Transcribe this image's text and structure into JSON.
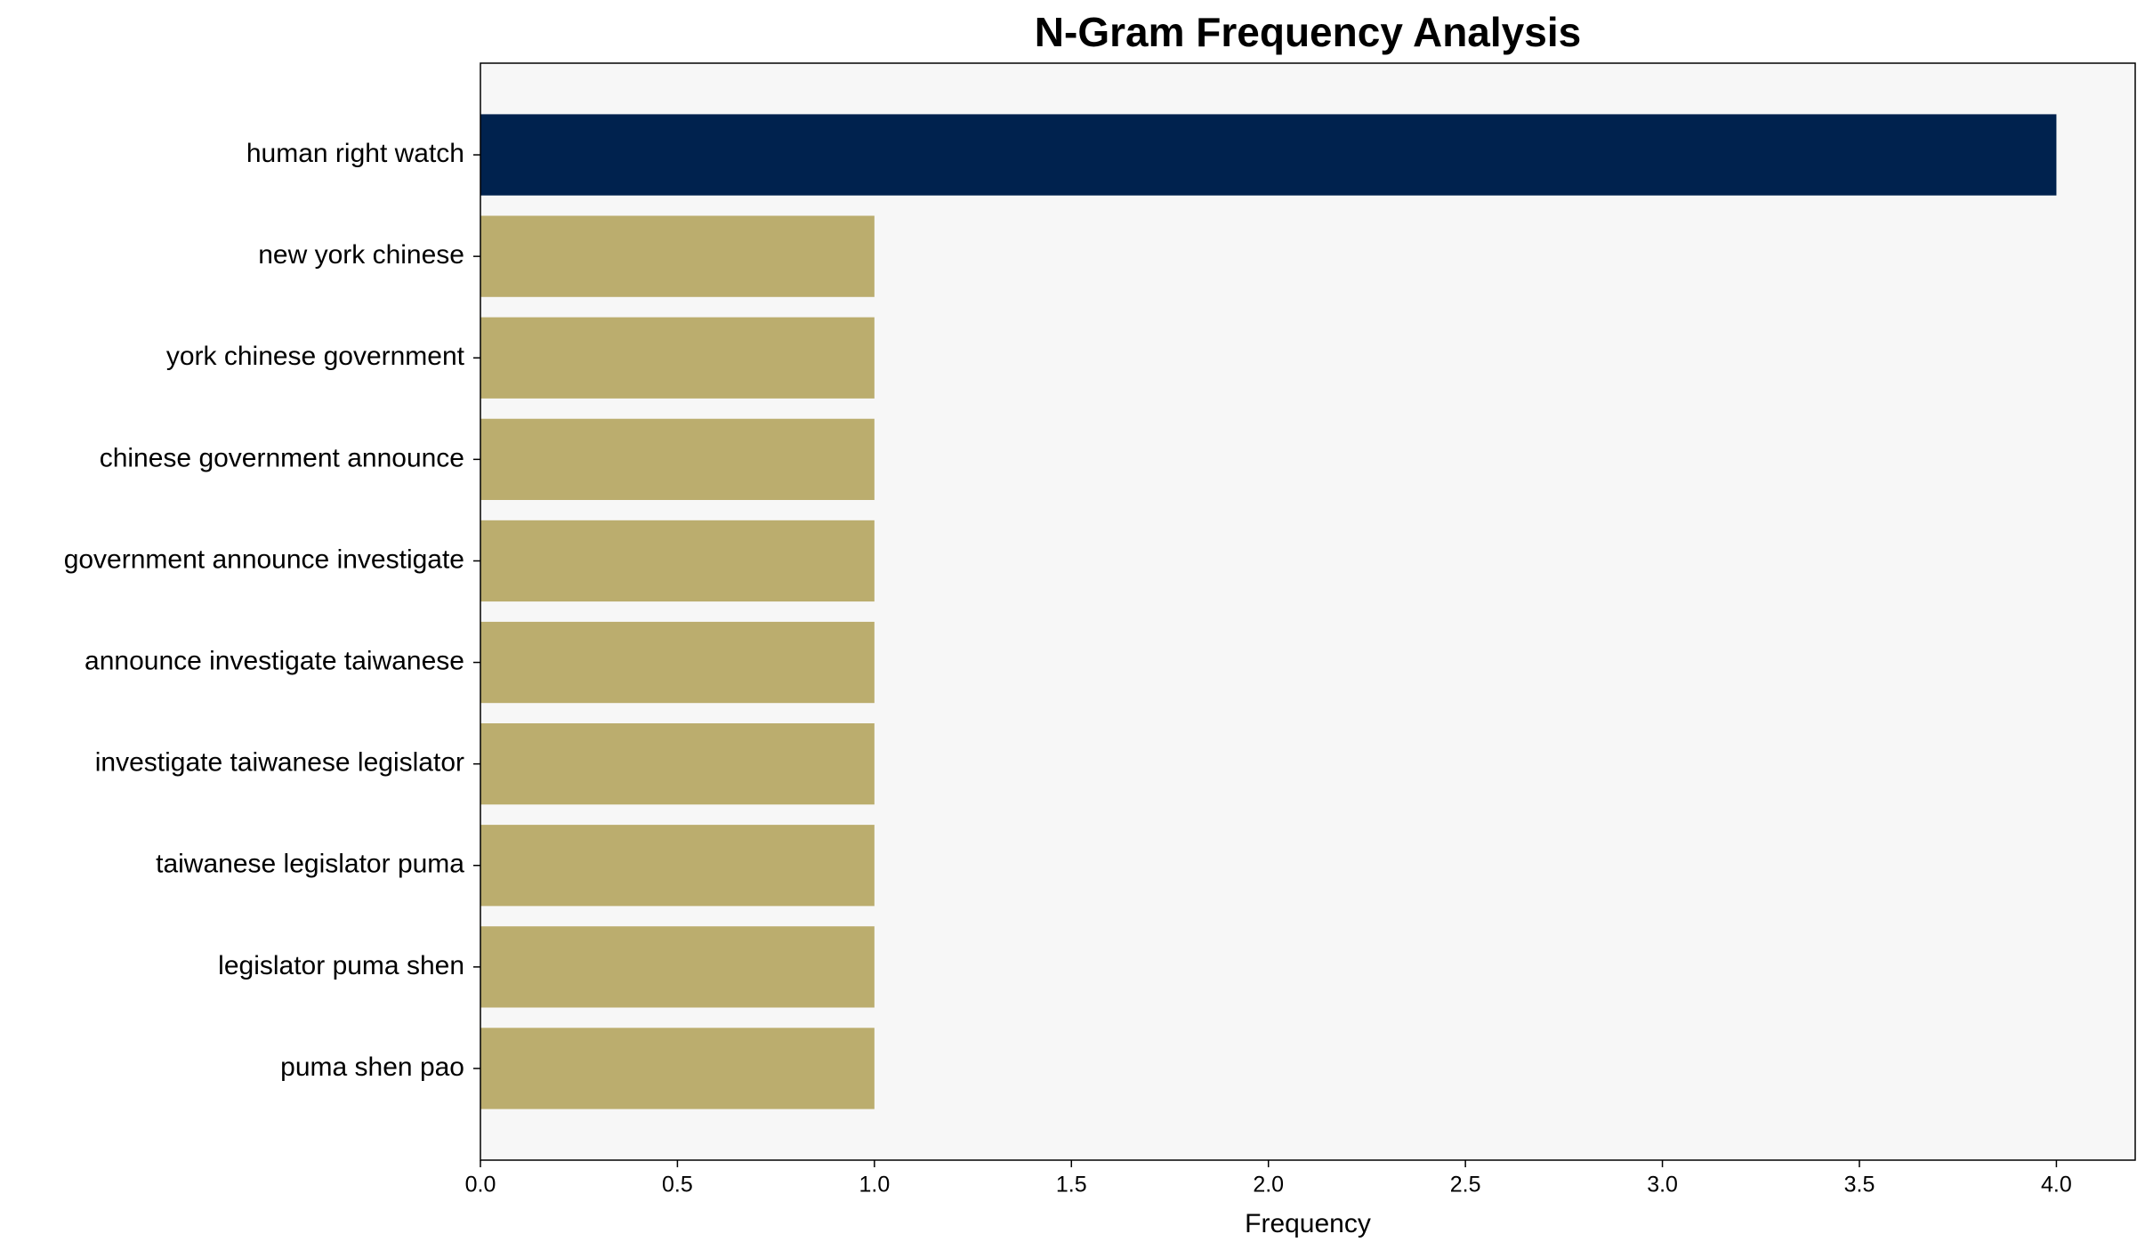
{
  "chart_data": {
    "type": "barh",
    "title": "N-Gram Frequency Analysis",
    "xlabel": "Frequency",
    "categories": [
      "human right watch",
      "new york chinese",
      "york chinese government",
      "chinese government announce",
      "government announce investigate",
      "announce investigate taiwanese",
      "investigate taiwanese legislator",
      "taiwanese legislator puma",
      "legislator puma shen",
      "puma shen pao"
    ],
    "values": [
      4,
      1,
      1,
      1,
      1,
      1,
      1,
      1,
      1,
      1
    ],
    "colors": [
      "#00224e",
      "#bbad6e",
      "#bbad6e",
      "#bbad6e",
      "#bbad6e",
      "#bbad6e",
      "#bbad6e",
      "#bbad6e",
      "#bbad6e",
      "#bbad6e"
    ],
    "xlim": [
      0,
      4.2
    ],
    "xticks": [
      {
        "value": 0,
        "label": "0.0"
      },
      0.5,
      {
        "value": 1,
        "label": "1.0"
      },
      1.5,
      {
        "value": 2,
        "label": "2.0"
      },
      2.5,
      {
        "value": 3,
        "label": "3.0"
      },
      3.5,
      {
        "value": 4,
        "label": "4.0"
      }
    ],
    "grid": false
  }
}
